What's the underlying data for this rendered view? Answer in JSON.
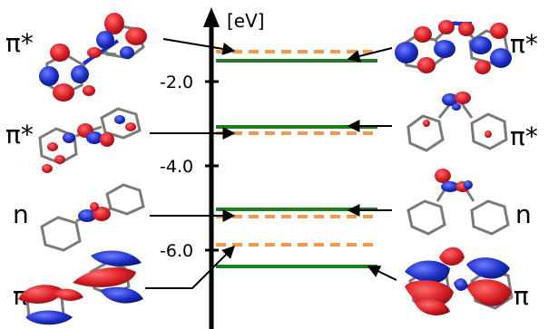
{
  "axis": {
    "unit": "[eV]",
    "ticks": [
      {
        "label": "-2.0",
        "value": -2.0
      },
      {
        "label": "-4.0",
        "value": -4.0
      },
      {
        "label": "-6.0",
        "value": -6.0
      }
    ]
  },
  "colors": {
    "solid_level": "#1e7d1e",
    "dashed_level": "#f39a4a",
    "lobe_red": "#d81e26",
    "lobe_blue": "#1e2fc7",
    "bond_gray": "#6a6a6a"
  },
  "left_orbitals": [
    {
      "label": "π*"
    },
    {
      "label": "π*"
    },
    {
      "label": "n"
    },
    {
      "label": "π"
    }
  ],
  "right_orbitals": [
    {
      "label": "π*"
    },
    {
      "label": "π*"
    },
    {
      "label": "n"
    },
    {
      "label": "π"
    }
  ]
}
